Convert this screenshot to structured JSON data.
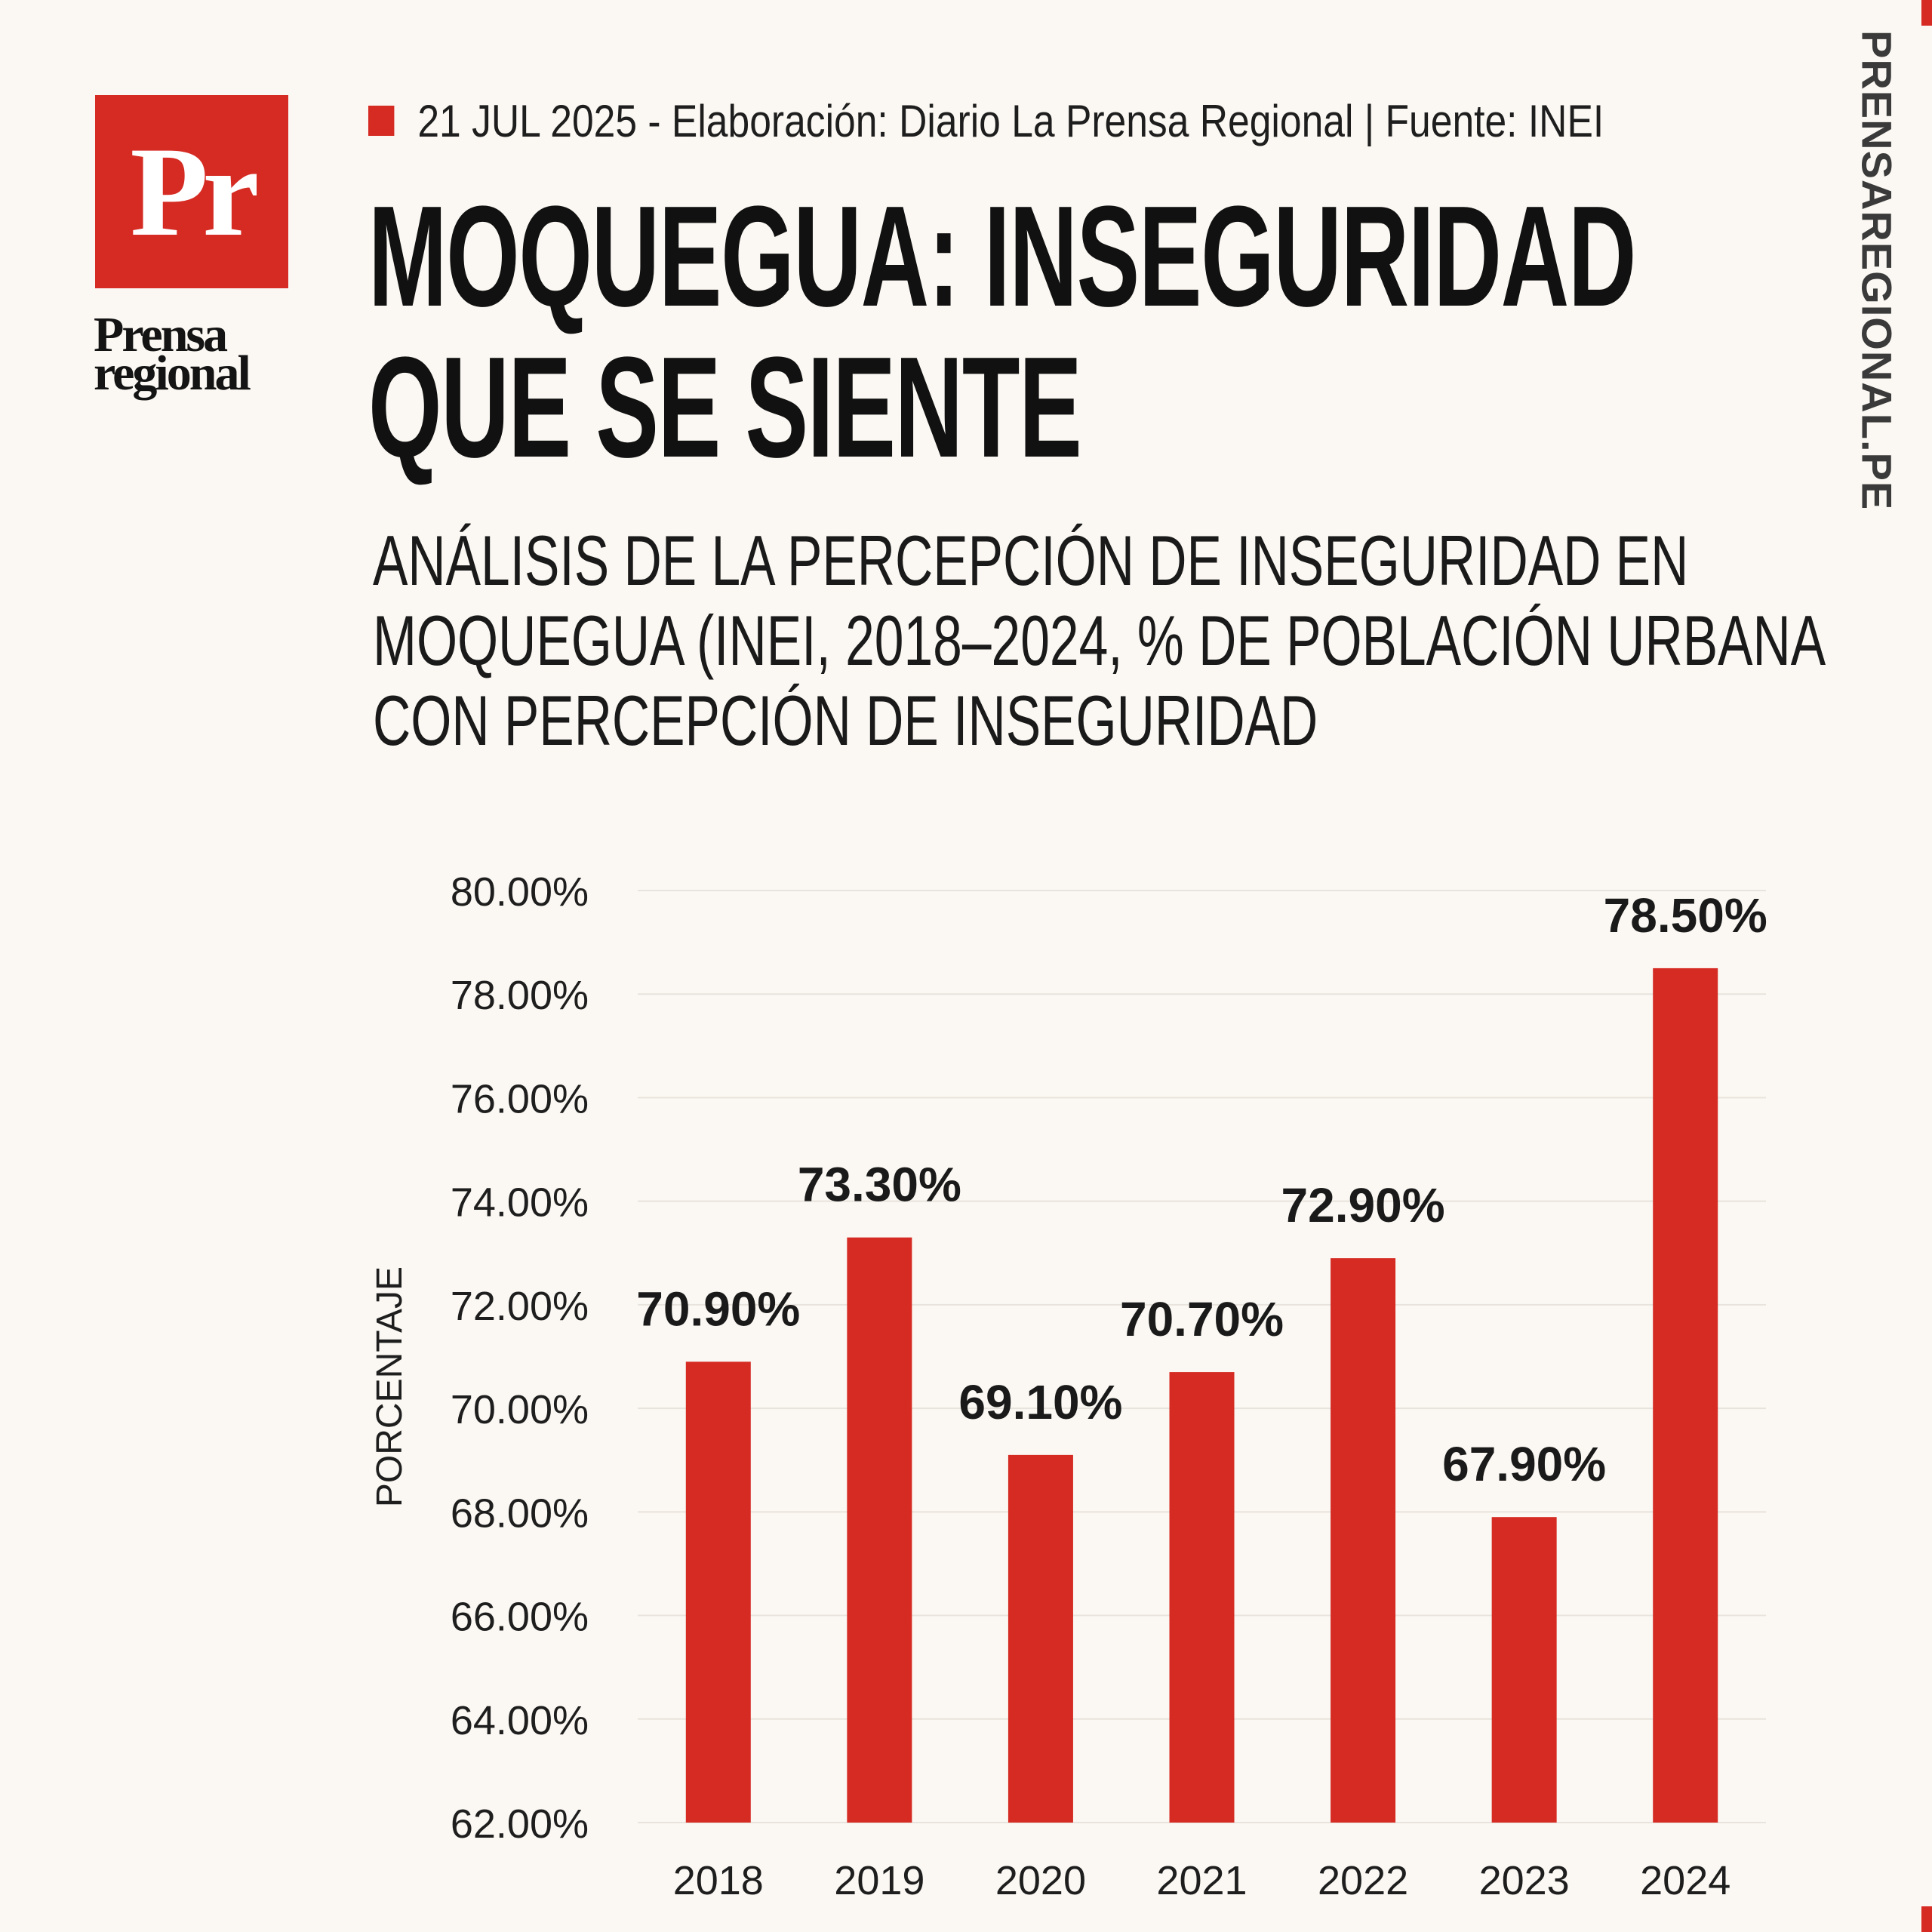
{
  "brand": {
    "logo_text": "Pr",
    "logo_word_1": "Prensa",
    "logo_word_2": "regional",
    "side_url": "PRENSAREGIONAL.PE",
    "accent_color": "#d52b23"
  },
  "header": {
    "meta": "21 JUL 2025 -  Elaboración: Diario La Prensa Regional | Fuente: INEI",
    "title_line_1": "MOQUEGUA: INSEGURIDAD",
    "title_line_2": "QUE SE SIENTE",
    "subtitle_line_1": "ANÁLISIS DE LA PERCEPCIÓN DE INSEGURIDAD EN",
    "subtitle_line_2": "MOQUEGUA (INEI, 2018–2024, % DE POBLACIÓN URBANA",
    "subtitle_line_3": "CON PERCEPCIÓN DE INSEGURIDAD"
  },
  "chart_data": {
    "type": "bar",
    "title": "",
    "xlabel": "",
    "ylabel": "PORCENTAJE",
    "categories": [
      "2018",
      "2019",
      "2020",
      "2021",
      "2022",
      "2023",
      "2024"
    ],
    "values": [
      70.9,
      73.3,
      69.1,
      70.7,
      72.9,
      67.9,
      78.5
    ],
    "data_labels": [
      "70.90%",
      "73.30%",
      "69.10%",
      "70.70%",
      "72.90%",
      "67.90%",
      "78.50%"
    ],
    "y_ticks": [
      "62.00%",
      "64.00%",
      "66.00%",
      "68.00%",
      "70.00%",
      "72.00%",
      "74.00%",
      "76.00%",
      "78.00%",
      "80.00%"
    ],
    "ylim": [
      62,
      80
    ],
    "grid": true,
    "legend": "none",
    "bar_color": "#d52b23"
  }
}
